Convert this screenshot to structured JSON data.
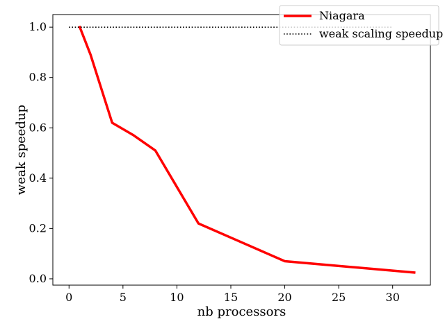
{
  "chart_data": {
    "type": "line",
    "xlabel": "nb processors",
    "ylabel": "weak speedup",
    "xlim": [
      -1.5,
      33.5
    ],
    "ylim": [
      -0.025,
      1.05
    ],
    "xticks": [
      0,
      5,
      10,
      15,
      20,
      25,
      30
    ],
    "yticks": [
      0.0,
      0.2,
      0.4,
      0.6,
      0.8,
      1.0
    ],
    "ytick_labels": [
      "0.0",
      "0.2",
      "0.4",
      "0.6",
      "0.8",
      "1.0"
    ],
    "grid": false,
    "legend_position": "top-right",
    "series": [
      {
        "name": "Niagara",
        "color": "#ff0000",
        "style": "solid",
        "x": [
          1,
          2,
          4,
          6,
          8,
          12,
          16,
          20,
          32
        ],
        "y": [
          1.0,
          0.89,
          0.62,
          0.57,
          0.51,
          0.22,
          0.145,
          0.07,
          0.025
        ]
      },
      {
        "name": "weak scaling speedup",
        "color": "#000000",
        "style": "dotted",
        "x": [
          0,
          30
        ],
        "y": [
          1.0,
          1.0
        ]
      }
    ]
  }
}
